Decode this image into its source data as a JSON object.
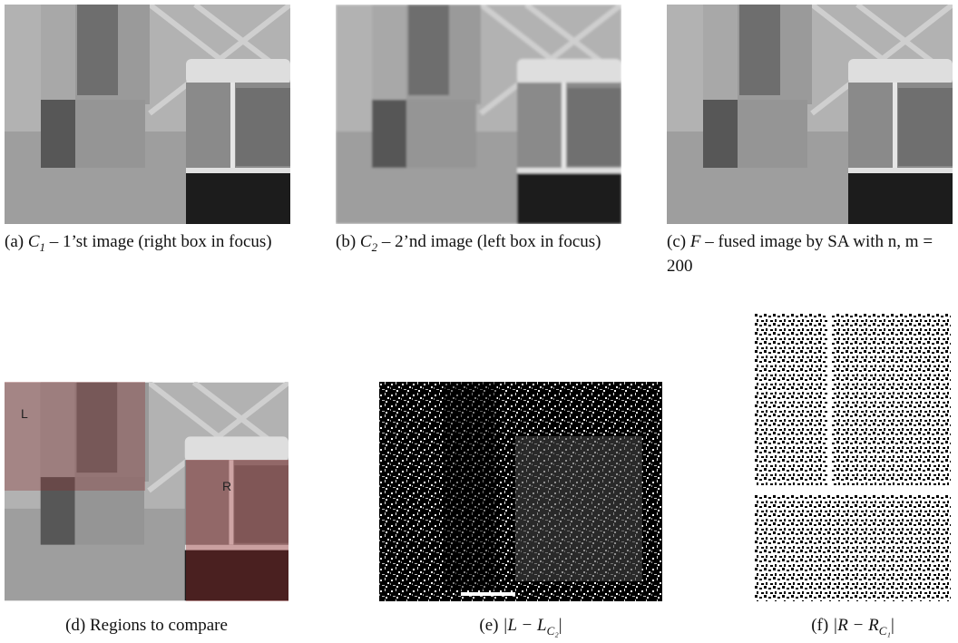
{
  "figures": [
    {
      "label": "(a)",
      "math": "C",
      "sub": "1",
      "text": "– 1’st image (right box in focus)"
    },
    {
      "label": "(b)",
      "math": "C",
      "sub": "2",
      "text": "– 2’nd image (left box in focus)"
    },
    {
      "label": "(c)",
      "math": "F",
      "text": "– fused image by SA with n, m = 200"
    },
    {
      "label": "(d)",
      "text": "Regions to compare"
    },
    {
      "label": "(e)",
      "math": "|L − L",
      "sub": "C₂",
      "text": "|"
    },
    {
      "label": "(f)",
      "math": "|R − R",
      "sub": "C₁",
      "text": "|"
    }
  ]
}
